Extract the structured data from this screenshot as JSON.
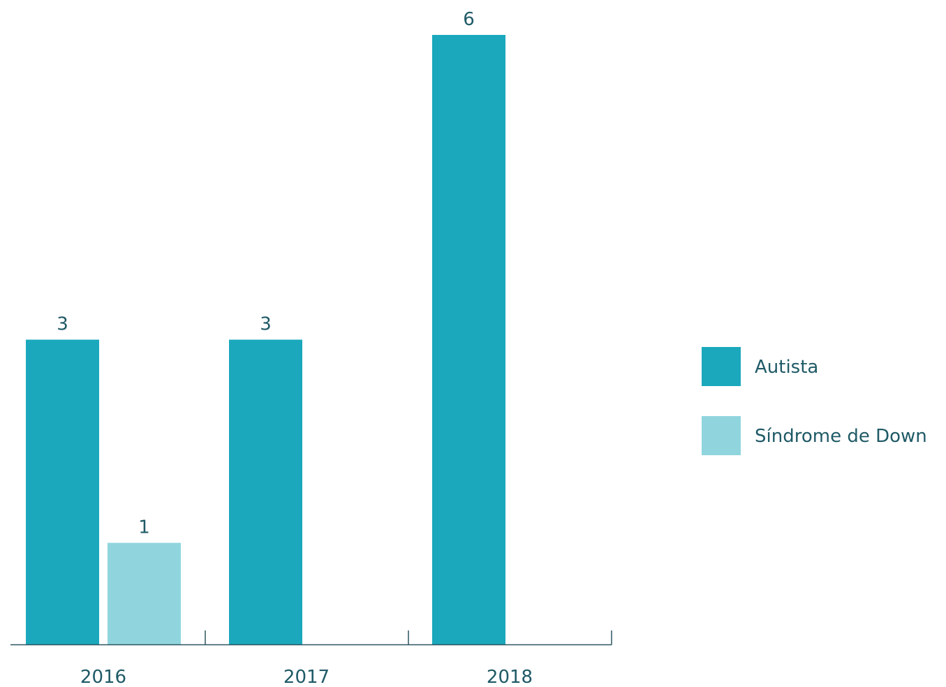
{
  "chart_data": {
    "type": "bar",
    "title": "",
    "xlabel": "",
    "ylabel": "",
    "categories": [
      "2016",
      "2017",
      "2018"
    ],
    "ylim": [
      0,
      6
    ],
    "grid": false,
    "legend_position": "right",
    "series": [
      {
        "name": "Autista",
        "color": "#1ba8bc",
        "values": [
          3,
          3,
          6
        ]
      },
      {
        "name": "Síndrome de Down",
        "color": "#90d5de",
        "values": [
          1,
          null,
          null
        ]
      }
    ],
    "data_labels": true
  }
}
